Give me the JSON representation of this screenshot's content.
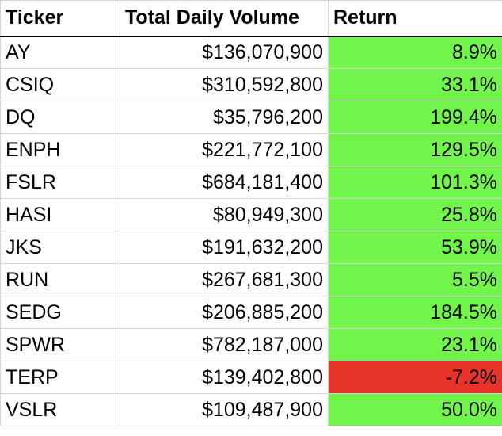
{
  "table": {
    "headers": [
      "Ticker",
      "Total Daily Volume",
      "Return"
    ],
    "rows": [
      {
        "ticker": "AY",
        "volume": "$136,070,900",
        "return": "8.9%",
        "positive": true
      },
      {
        "ticker": "CSIQ",
        "volume": "$310,592,800",
        "return": "33.1%",
        "positive": true
      },
      {
        "ticker": "DQ",
        "volume": "$35,796,200",
        "return": "199.4%",
        "positive": true
      },
      {
        "ticker": "ENPH",
        "volume": "$221,772,100",
        "return": "129.5%",
        "positive": true
      },
      {
        "ticker": "FSLR",
        "volume": "$684,181,400",
        "return": "101.3%",
        "positive": true
      },
      {
        "ticker": "HASI",
        "volume": "$80,949,300",
        "return": "25.8%",
        "positive": true
      },
      {
        "ticker": "JKS",
        "volume": "$191,632,200",
        "return": "53.9%",
        "positive": true
      },
      {
        "ticker": "RUN",
        "volume": "$267,681,300",
        "return": "5.5%",
        "positive": true
      },
      {
        "ticker": "SEDG",
        "volume": "$206,885,200",
        "return": "184.5%",
        "positive": true
      },
      {
        "ticker": "SPWR",
        "volume": "$782,187,000",
        "return": "23.1%",
        "positive": true
      },
      {
        "ticker": "TERP",
        "volume": "$139,402,800",
        "return": "-7.2%",
        "positive": false
      },
      {
        "ticker": "VSLR",
        "volume": "$109,487,900",
        "return": "50.0%",
        "positive": true
      }
    ]
  },
  "colors": {
    "positive_fill": "#71f54a",
    "negative_fill": "#e8332a",
    "gridline": "#d4d4d4",
    "text": "#000000"
  }
}
